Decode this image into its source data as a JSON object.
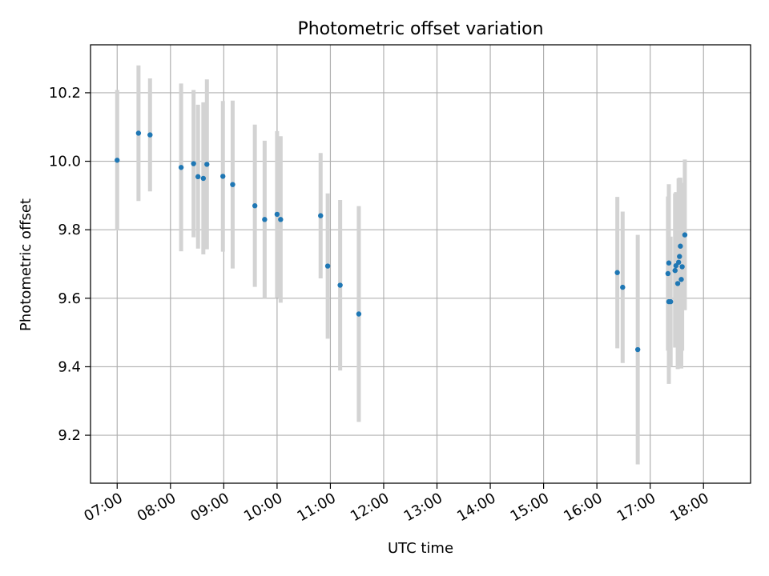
{
  "chart_data": {
    "type": "scatter",
    "title": "Photometric offset variation",
    "xlabel": "UTC time",
    "ylabel": "Photometric offset",
    "x_unit": "UTC time (HH:MM, decimal hours in values)",
    "xlim": [
      "06:30",
      "18:53"
    ],
    "ylim": [
      9.06,
      10.34
    ],
    "grid": true,
    "x_ticks": [
      "07:00",
      "08:00",
      "09:00",
      "10:00",
      "11:00",
      "12:00",
      "13:00",
      "14:00",
      "15:00",
      "16:00",
      "17:00",
      "18:00"
    ],
    "y_ticks": [
      "9.2",
      "9.4",
      "9.6",
      "9.8",
      "10.0",
      "10.2"
    ],
    "colors": {
      "marker": "#1f77b4",
      "errorbar": "#d3d3d3",
      "grid": "#b0b0b0"
    },
    "series": [
      {
        "points": [
          {
            "x": "07:00",
            "y": 10.003,
            "err": 0.205
          },
          {
            "x": "07:24",
            "y": 10.082,
            "err": 0.198
          },
          {
            "x": "07:37",
            "y": 10.077,
            "err": 0.165
          },
          {
            "x": "08:12",
            "y": 9.982,
            "err": 0.245
          },
          {
            "x": "08:26",
            "y": 9.993,
            "err": 0.215
          },
          {
            "x": "08:31",
            "y": 9.955,
            "err": 0.21
          },
          {
            "x": "08:37",
            "y": 9.95,
            "err": 0.222
          },
          {
            "x": "08:41",
            "y": 9.991,
            "err": 0.248
          },
          {
            "x": "08:59",
            "y": 9.956,
            "err": 0.22
          },
          {
            "x": "09:10",
            "y": 9.932,
            "err": 0.245
          },
          {
            "x": "09:35",
            "y": 9.87,
            "err": 0.237
          },
          {
            "x": "09:46",
            "y": 9.83,
            "err": 0.23
          },
          {
            "x": "10:00",
            "y": 9.845,
            "err": 0.243
          },
          {
            "x": "10:04",
            "y": 9.83,
            "err": 0.243
          },
          {
            "x": "10:49",
            "y": 9.841,
            "err": 0.183
          },
          {
            "x": "10:57",
            "y": 9.694,
            "err": 0.212
          },
          {
            "x": "11:11",
            "y": 9.638,
            "err": 0.249
          },
          {
            "x": "11:32",
            "y": 9.554,
            "err": 0.315
          },
          {
            "x": "16:23",
            "y": 9.675,
            "err": 0.221
          },
          {
            "x": "16:29",
            "y": 9.632,
            "err": 0.221
          },
          {
            "x": "16:46",
            "y": 9.45,
            "err": 0.335
          },
          {
            "x": "17:20",
            "y": 9.672,
            "err": 0.225
          },
          {
            "x": "17:21",
            "y": 9.703,
            "err": 0.23
          },
          {
            "x": "17:21",
            "y": 9.59,
            "err": 0.24
          },
          {
            "x": "17:23",
            "y": 9.59,
            "err": 0.19
          },
          {
            "x": "17:28",
            "y": 9.681,
            "err": 0.225
          },
          {
            "x": "17:29",
            "y": 9.695,
            "err": 0.215
          },
          {
            "x": "17:31",
            "y": 9.643,
            "err": 0.25
          },
          {
            "x": "17:32",
            "y": 9.705,
            "err": 0.245
          },
          {
            "x": "17:33",
            "y": 9.722,
            "err": 0.23
          },
          {
            "x": "17:34",
            "y": 9.752,
            "err": 0.2
          },
          {
            "x": "17:35",
            "y": 9.655,
            "err": 0.26
          },
          {
            "x": "17:36",
            "y": 9.692,
            "err": 0.245
          },
          {
            "x": "17:39",
            "y": 9.785,
            "err": 0.22
          }
        ]
      }
    ]
  }
}
